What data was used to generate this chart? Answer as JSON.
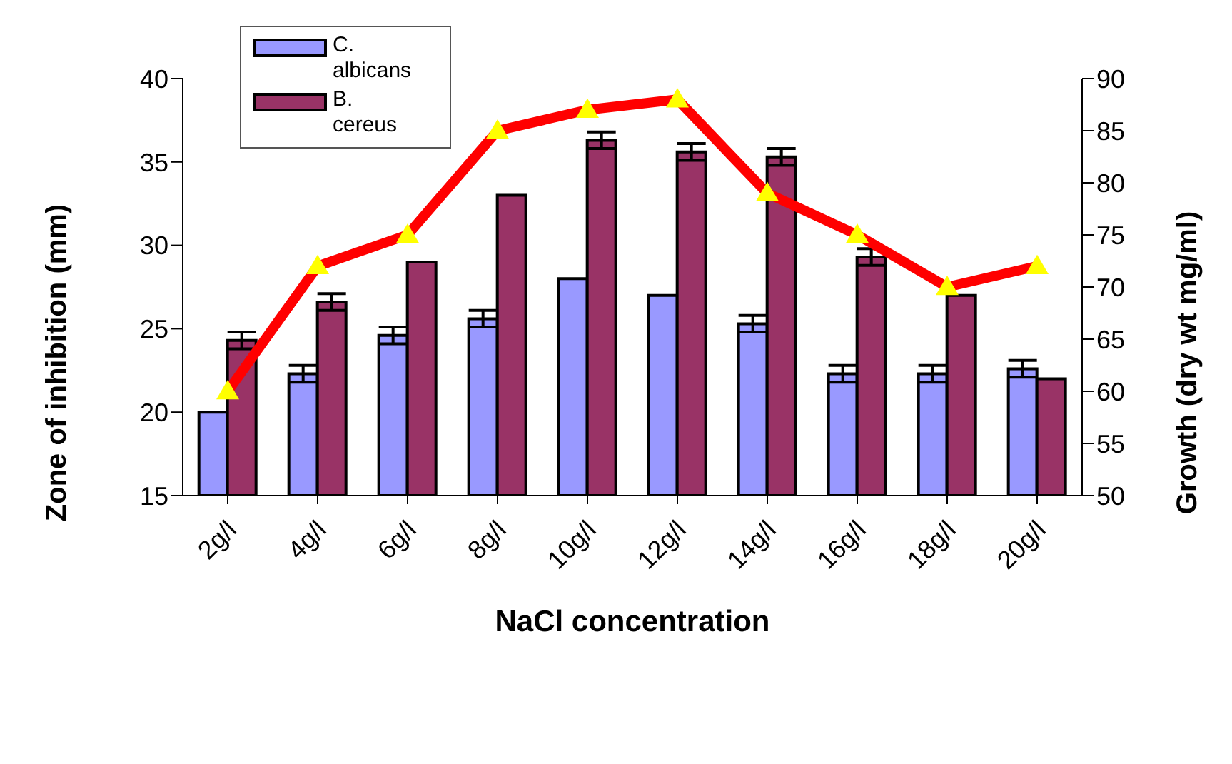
{
  "chart_data": {
    "type": "bar",
    "xlabel": "NaCl concentration",
    "ylabel": "Zone of inhibition (mm)",
    "y2label": "Growth (dry wt mg/ml)",
    "categories": [
      "2g/l",
      "4g/l",
      "6g/l",
      "8g/l",
      "10g/l",
      "12g/l",
      "14g/l",
      "16g/l",
      "18g/l",
      "20g/l"
    ],
    "series": [
      {
        "name": "C. albicans",
        "color": "#9999ff",
        "values": [
          20,
          22.3,
          24.6,
          25.6,
          28,
          27,
          25.3,
          22.3,
          22.3,
          22.6
        ],
        "errors": [
          null,
          0.5,
          0.5,
          0.5,
          null,
          null,
          0.5,
          0.5,
          0.5,
          0.5
        ]
      },
      {
        "name": "B. cereus",
        "color": "#993366",
        "values": [
          24.3,
          26.6,
          29,
          33,
          36.3,
          35.6,
          35.3,
          29.3,
          27,
          22
        ],
        "errors": [
          0.5,
          0.5,
          null,
          null,
          0.5,
          0.5,
          0.5,
          0.5,
          null,
          null
        ]
      },
      {
        "type": "line",
        "axis": "y2",
        "color": "#ff0000",
        "values": [
          60,
          72,
          75,
          85,
          87,
          88,
          79,
          75,
          70,
          72
        ],
        "marker": "triangle",
        "line_style": "solid"
      }
    ],
    "ylim": [
      15,
      40
    ],
    "yticks": [
      15,
      20,
      25,
      30,
      35,
      40
    ],
    "y2lim": [
      50,
      90
    ],
    "y2ticks": [
      50,
      55,
      60,
      65,
      70,
      75,
      80,
      85,
      90
    ],
    "grid": false,
    "legend": "top left"
  }
}
